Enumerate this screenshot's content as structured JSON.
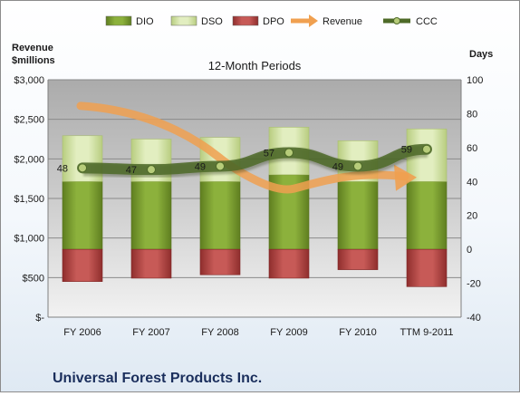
{
  "chart_data": {
    "type": "bar",
    "title": "12-Month Periods",
    "company": "Universal Forest Products Inc.",
    "ylabel_left": "Revenue\n$millions",
    "ylabel_right": "Days",
    "categories": [
      "FY 2006",
      "FY 2007",
      "FY 2008",
      "FY 2009",
      "FY 2010",
      "TTM 9-2011"
    ],
    "left_axis": {
      "ylim": [
        0,
        3000
      ],
      "ticks": [
        0,
        500,
        1000,
        1500,
        2000,
        2500,
        3000
      ],
      "tick_labels": [
        "$-",
        "$500",
        "$1,000",
        "$1,500",
        "$2,000",
        "$2,500",
        "$3,000"
      ]
    },
    "right_axis": {
      "ylim": [
        -40,
        100
      ],
      "ticks": [
        -40,
        -20,
        0,
        20,
        40,
        60,
        80,
        100
      ],
      "tick_labels": [
        "-40",
        "-20",
        "0",
        "20",
        "40",
        "60",
        "80",
        "100"
      ]
    },
    "legend_position": "top",
    "legend": [
      {
        "name": "DIO",
        "kind": "bar",
        "color": "#7a9c2e"
      },
      {
        "name": "DSO",
        "kind": "bar",
        "color": "#d3e4a4"
      },
      {
        "name": "DPO",
        "kind": "bar",
        "color": "#b94a48"
      },
      {
        "name": "Revenue",
        "kind": "arrow",
        "color": "#f0a050"
      },
      {
        "name": "CCC",
        "kind": "line",
        "color": "#4e6a28"
      }
    ],
    "series": [
      {
        "name": "DIO",
        "axis": "right",
        "values": [
          40,
          40,
          40,
          44,
          40,
          40
        ]
      },
      {
        "name": "DSO",
        "axis": "right",
        "values": [
          27,
          25,
          26,
          28,
          24,
          31
        ]
      },
      {
        "name": "DPO",
        "axis": "right",
        "values": [
          -19,
          -17,
          -15,
          -17,
          -12,
          -22
        ]
      },
      {
        "name": "Revenue",
        "axis": "left",
        "values": [
          2670,
          2430,
          2100,
          1600,
          1900,
          1800
        ]
      },
      {
        "name": "CCC",
        "axis": "right",
        "values": [
          48,
          47,
          49,
          57,
          49,
          59
        ]
      }
    ],
    "data_labels": [
      "48",
      "47",
      "49",
      "57",
      "49",
      "59"
    ]
  }
}
